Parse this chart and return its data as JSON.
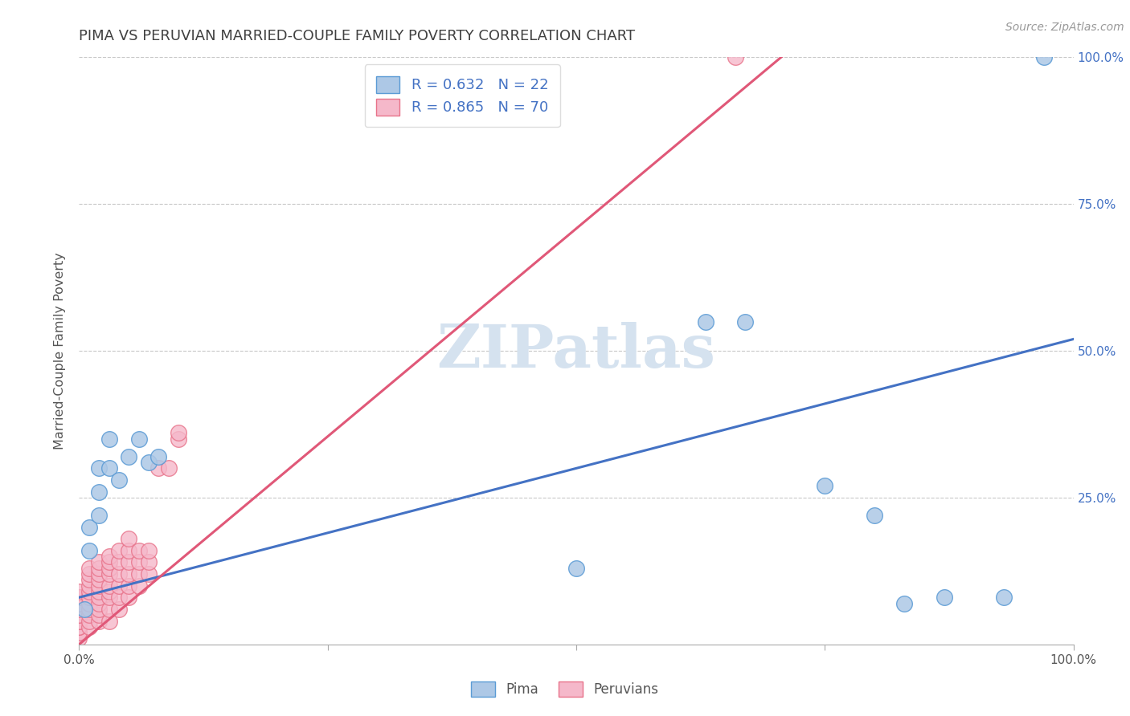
{
  "title": "PIMA VS PERUVIAN MARRIED-COUPLE FAMILY POVERTY CORRELATION CHART",
  "source_text": "Source: ZipAtlas.com",
  "ylabel": "Married-Couple Family Poverty",
  "xlim": [
    0,
    1
  ],
  "ylim": [
    0,
    1
  ],
  "xtick_labels": [
    "0.0%",
    "",
    "",
    "",
    "100.0%"
  ],
  "xtick_vals": [
    0,
    0.25,
    0.5,
    0.75,
    1.0
  ],
  "ytick_labels": [
    "25.0%",
    "50.0%",
    "75.0%",
    "100.0%"
  ],
  "ytick_vals": [
    0.25,
    0.5,
    0.75,
    1.0
  ],
  "pima_R": 0.632,
  "pima_N": 22,
  "peruvian_R": 0.865,
  "peruvian_N": 70,
  "pima_color": "#adc8e6",
  "pima_edge_color": "#5b9bd5",
  "peruvian_color": "#f5b8ca",
  "peruvian_edge_color": "#e8738a",
  "pima_line_color": "#4472c4",
  "peruvian_line_color": "#e05878",
  "background_color": "#ffffff",
  "grid_color": "#c8c8c8",
  "watermark_color": "#d5e2ef",
  "title_color": "#404040",
  "pima_dots": [
    [
      0.005,
      0.06
    ],
    [
      0.01,
      0.16
    ],
    [
      0.01,
      0.2
    ],
    [
      0.02,
      0.22
    ],
    [
      0.02,
      0.26
    ],
    [
      0.02,
      0.3
    ],
    [
      0.03,
      0.3
    ],
    [
      0.03,
      0.35
    ],
    [
      0.04,
      0.28
    ],
    [
      0.05,
      0.32
    ],
    [
      0.06,
      0.35
    ],
    [
      0.07,
      0.31
    ],
    [
      0.08,
      0.32
    ],
    [
      0.5,
      0.13
    ],
    [
      0.63,
      0.55
    ],
    [
      0.67,
      0.55
    ],
    [
      0.75,
      0.27
    ],
    [
      0.8,
      0.22
    ],
    [
      0.83,
      0.07
    ],
    [
      0.87,
      0.08
    ],
    [
      0.93,
      0.08
    ],
    [
      0.97,
      1.0
    ]
  ],
  "peruvian_dots": [
    [
      0.0,
      0.01
    ],
    [
      0.0,
      0.02
    ],
    [
      0.0,
      0.02
    ],
    [
      0.0,
      0.03
    ],
    [
      0.0,
      0.03
    ],
    [
      0.0,
      0.04
    ],
    [
      0.0,
      0.04
    ],
    [
      0.0,
      0.05
    ],
    [
      0.0,
      0.05
    ],
    [
      0.0,
      0.06
    ],
    [
      0.0,
      0.07
    ],
    [
      0.0,
      0.07
    ],
    [
      0.0,
      0.08
    ],
    [
      0.0,
      0.08
    ],
    [
      0.0,
      0.09
    ],
    [
      0.01,
      0.03
    ],
    [
      0.01,
      0.04
    ],
    [
      0.01,
      0.05
    ],
    [
      0.01,
      0.06
    ],
    [
      0.01,
      0.07
    ],
    [
      0.01,
      0.08
    ],
    [
      0.01,
      0.09
    ],
    [
      0.01,
      0.1
    ],
    [
      0.01,
      0.11
    ],
    [
      0.01,
      0.12
    ],
    [
      0.01,
      0.13
    ],
    [
      0.02,
      0.04
    ],
    [
      0.02,
      0.05
    ],
    [
      0.02,
      0.06
    ],
    [
      0.02,
      0.07
    ],
    [
      0.02,
      0.08
    ],
    [
      0.02,
      0.09
    ],
    [
      0.02,
      0.1
    ],
    [
      0.02,
      0.11
    ],
    [
      0.02,
      0.12
    ],
    [
      0.02,
      0.13
    ],
    [
      0.02,
      0.14
    ],
    [
      0.03,
      0.04
    ],
    [
      0.03,
      0.06
    ],
    [
      0.03,
      0.08
    ],
    [
      0.03,
      0.09
    ],
    [
      0.03,
      0.1
    ],
    [
      0.03,
      0.12
    ],
    [
      0.03,
      0.13
    ],
    [
      0.03,
      0.14
    ],
    [
      0.03,
      0.15
    ],
    [
      0.04,
      0.06
    ],
    [
      0.04,
      0.08
    ],
    [
      0.04,
      0.1
    ],
    [
      0.04,
      0.12
    ],
    [
      0.04,
      0.14
    ],
    [
      0.04,
      0.16
    ],
    [
      0.05,
      0.08
    ],
    [
      0.05,
      0.1
    ],
    [
      0.05,
      0.12
    ],
    [
      0.05,
      0.14
    ],
    [
      0.05,
      0.16
    ],
    [
      0.05,
      0.18
    ],
    [
      0.06,
      0.1
    ],
    [
      0.06,
      0.12
    ],
    [
      0.06,
      0.14
    ],
    [
      0.06,
      0.16
    ],
    [
      0.07,
      0.12
    ],
    [
      0.07,
      0.14
    ],
    [
      0.07,
      0.16
    ],
    [
      0.08,
      0.3
    ],
    [
      0.09,
      0.3
    ],
    [
      0.1,
      0.35
    ],
    [
      0.1,
      0.36
    ],
    [
      0.66,
      1.0
    ]
  ],
  "pima_line_x": [
    0.0,
    1.0
  ],
  "pima_line_y": [
    0.08,
    0.52
  ],
  "peruvian_line_x": [
    0.0,
    0.72
  ],
  "peruvian_line_y": [
    0.0,
    1.02
  ],
  "legend_label_pima": "Pima",
  "legend_label_peruvians": "Peruvians"
}
